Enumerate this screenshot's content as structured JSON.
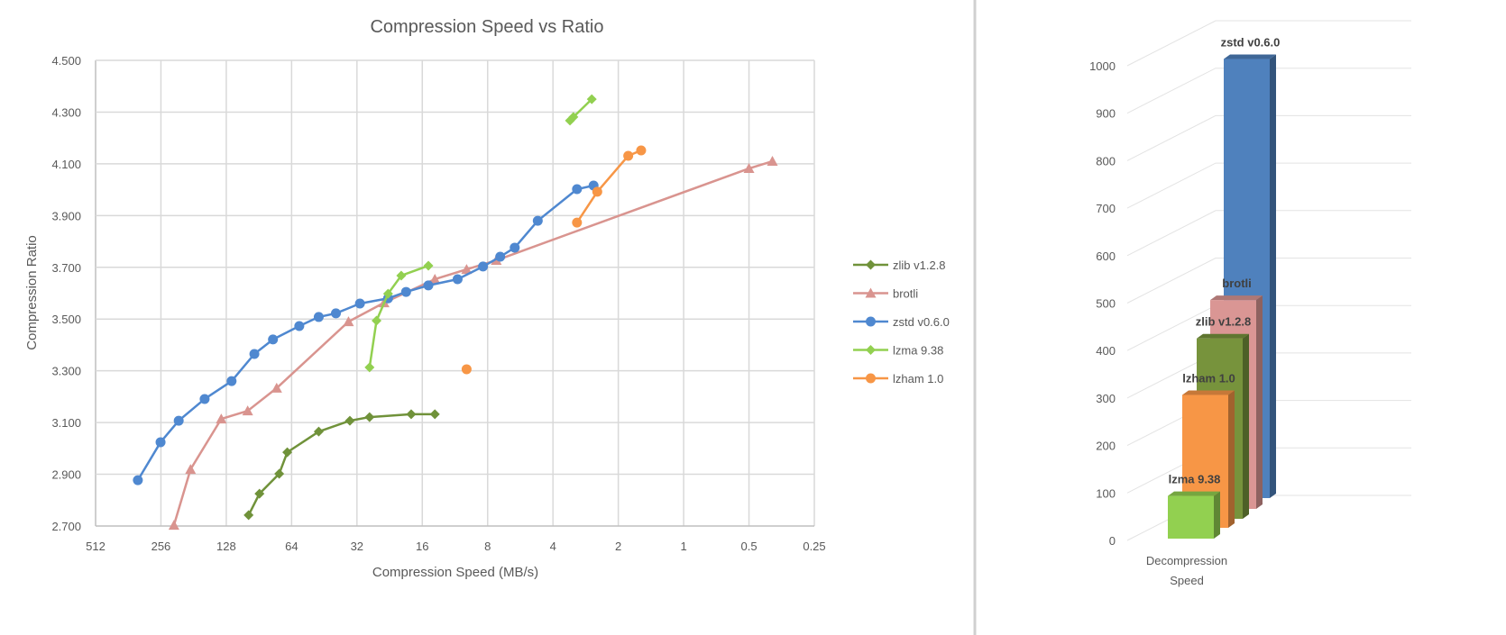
{
  "chart_data": [
    {
      "type": "line",
      "title": "Compression Speed vs Ratio",
      "xlabel": "Compression Speed (MB/s)",
      "ylabel": "Compression Ratio",
      "x_scale": "log2-reversed",
      "xlim": [
        512,
        0.25
      ],
      "ylim": [
        2.7,
        4.5
      ],
      "x_ticks": [
        "512",
        "256",
        "128",
        "64",
        "32",
        "16",
        "8",
        "4",
        "2",
        "1",
        "0.5",
        "0.25"
      ],
      "x_tick_values": [
        512,
        256,
        128,
        64,
        32,
        16,
        8,
        4,
        2,
        1,
        0.5,
        0.25
      ],
      "y_ticks": [
        "2.700",
        "2.900",
        "3.100",
        "3.300",
        "3.500",
        "3.700",
        "3.900",
        "4.100",
        "4.300",
        "4.500"
      ],
      "grid": true,
      "legend": "right",
      "series": [
        {
          "name": "zlib v1.2.8",
          "color": "#70923a",
          "marker": "diamond",
          "x": [
            101,
            90,
            73,
            67,
            48,
            34.5,
            28,
            18,
            14
          ],
          "y": [
            2.742,
            2.825,
            2.902,
            2.985,
            3.065,
            3.107,
            3.121,
            3.132,
            3.132
          ]
        },
        {
          "name": "brotli",
          "color": "#d9948f",
          "marker": "triangle",
          "x": [
            223,
            187,
            135,
            102,
            75,
            35,
            24,
            14,
            10,
            7.3,
            0.5,
            0.39
          ],
          "y": [
            2.703,
            2.919,
            3.114,
            3.145,
            3.233,
            3.49,
            3.563,
            3.654,
            3.692,
            3.727,
            4.082,
            4.11
          ]
        },
        {
          "name": "zstd v0.6.0",
          "color": "#4f88d0",
          "marker": "circle",
          "x": [
            327,
            257,
            212,
            161,
            121,
            95,
            78,
            59,
            48,
            40,
            31,
            23,
            19,
            15,
            11,
            8.4,
            7,
            6,
            4.7,
            3.1,
            2.6
          ],
          "y": [
            2.877,
            3.024,
            3.107,
            3.191,
            3.26,
            3.365,
            3.421,
            3.473,
            3.508,
            3.522,
            3.56,
            3.58,
            3.605,
            3.63,
            3.654,
            3.703,
            3.741,
            3.776,
            3.88,
            4.002,
            4.016
          ]
        },
        {
          "name": "lzma 9.38",
          "color": "#92d050",
          "marker": "diamond",
          "x": [
            28,
            26,
            23,
            20,
            15,
            null,
            3.34,
            3.22,
            2.65
          ],
          "y": [
            3.313,
            3.494,
            3.598,
            3.668,
            3.706,
            null,
            4.267,
            4.281,
            4.35
          ]
        },
        {
          "name": "lzham 1.0",
          "color": "#f79646",
          "marker": "circle",
          "x": [
            10,
            null,
            3.1,
            2.5,
            1.8,
            1.57
          ],
          "y": [
            3.306,
            null,
            3.873,
            3.992,
            4.131,
            4.152
          ]
        }
      ]
    },
    {
      "type": "bar",
      "style": "3d",
      "categories": [
        "Decompression Speed"
      ],
      "category_label_lines": [
        "Decompression",
        "Speed"
      ],
      "ylim": [
        0,
        1000
      ],
      "y_ticks": [
        "0",
        "100",
        "200",
        "300",
        "400",
        "500",
        "600",
        "700",
        "800",
        "900",
        "1000"
      ],
      "grid": true,
      "series": [
        {
          "name": "lzma 9.38",
          "color": "#92d050",
          "values": [
            90
          ]
        },
        {
          "name": "lzham 1.0",
          "color": "#f79646",
          "values": [
            280
          ]
        },
        {
          "name": "zlib v1.2.8",
          "color": "#77933c",
          "values": [
            380
          ]
        },
        {
          "name": "brotli",
          "color": "#da9694",
          "values": [
            440
          ]
        },
        {
          "name": "zstd v0.6.0",
          "color": "#4f81bd",
          "values": [
            925
          ]
        }
      ]
    }
  ]
}
